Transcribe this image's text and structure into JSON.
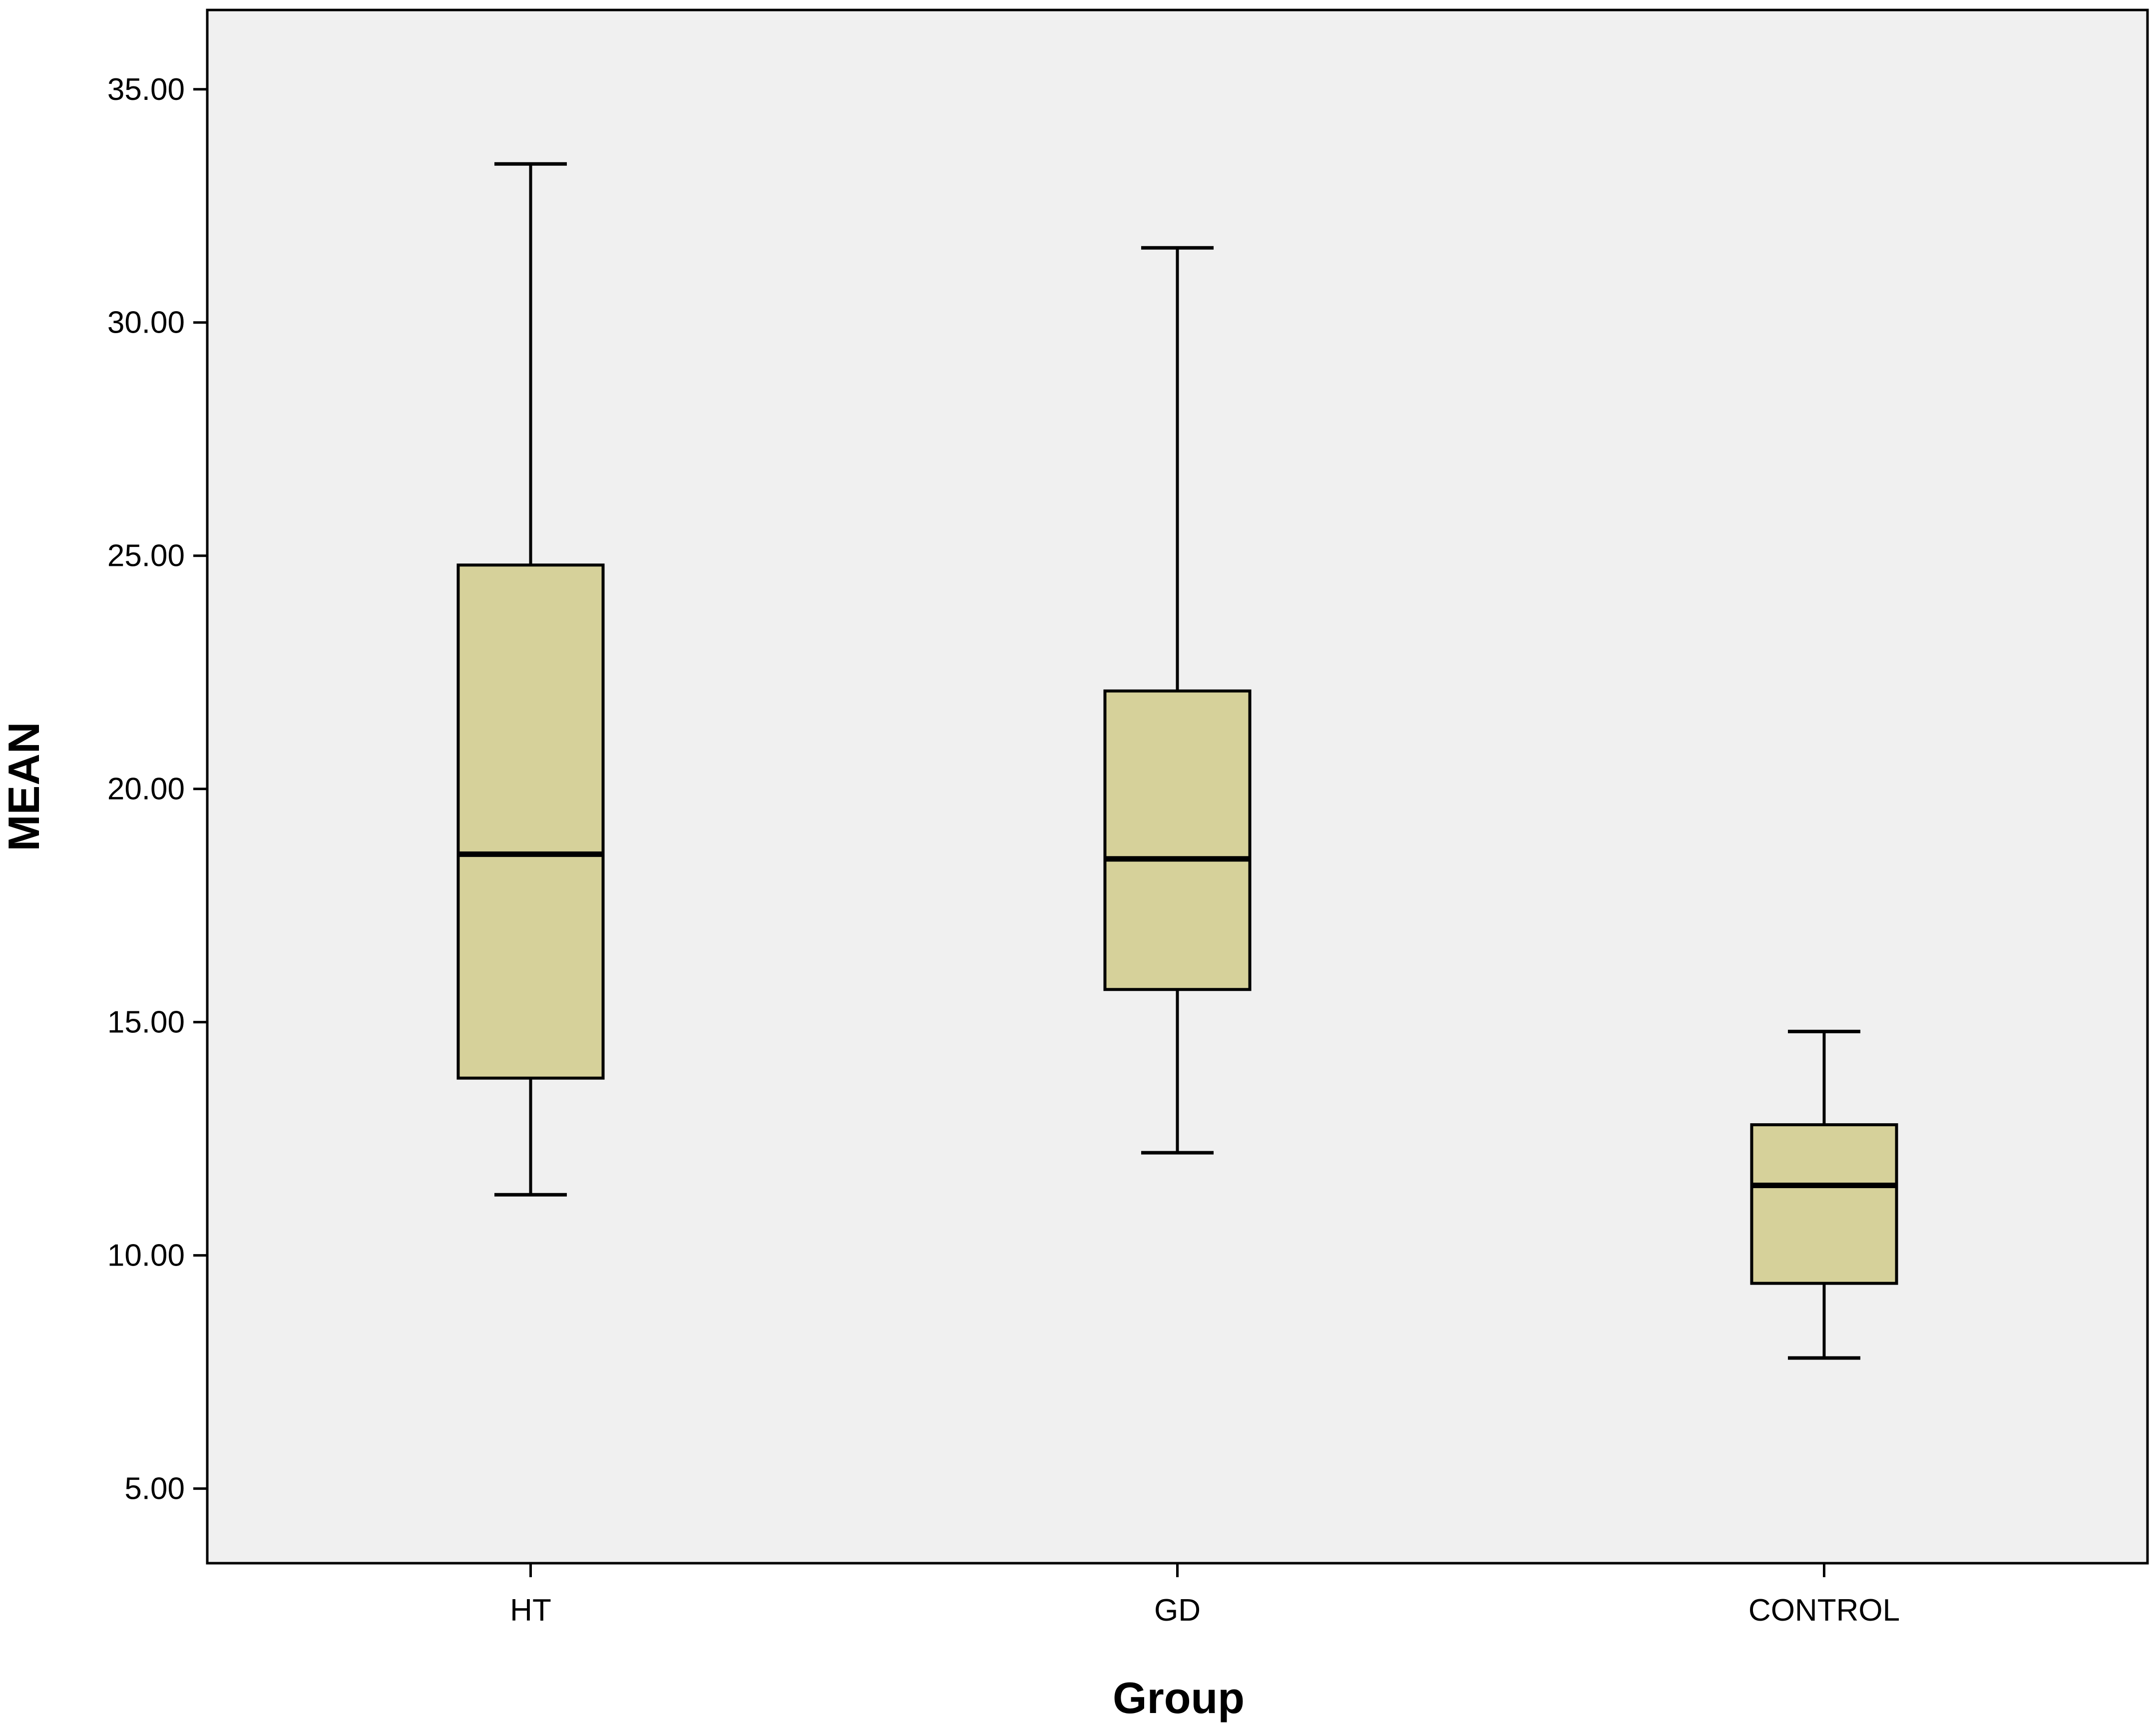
{
  "chart_data": {
    "type": "boxplot",
    "xlabel": "Group",
    "ylabel": "MEAN",
    "ylim": [
      3.4,
      36.7
    ],
    "yticks": [
      5,
      10,
      15,
      20,
      25,
      30,
      35
    ],
    "ytick_labels": [
      "5.00",
      "10.00",
      "15.00",
      "20.00",
      "25.00",
      "30.00",
      "35.00"
    ],
    "categories": [
      "HT",
      "GD",
      "CONTROL"
    ],
    "box_color": "#d6d19a",
    "background_color": "#f0f0f0",
    "grid": false,
    "legend": "none",
    "boxes": [
      {
        "category": "HT",
        "min": 11.3,
        "q1": 13.8,
        "median": 18.6,
        "q3": 24.8,
        "max": 33.4
      },
      {
        "category": "GD",
        "min": 12.2,
        "q1": 15.7,
        "median": 18.5,
        "q3": 22.1,
        "max": 31.6
      },
      {
        "category": "CONTROL",
        "min": 7.8,
        "q1": 9.4,
        "median": 11.5,
        "q3": 12.8,
        "max": 14.8
      }
    ]
  }
}
